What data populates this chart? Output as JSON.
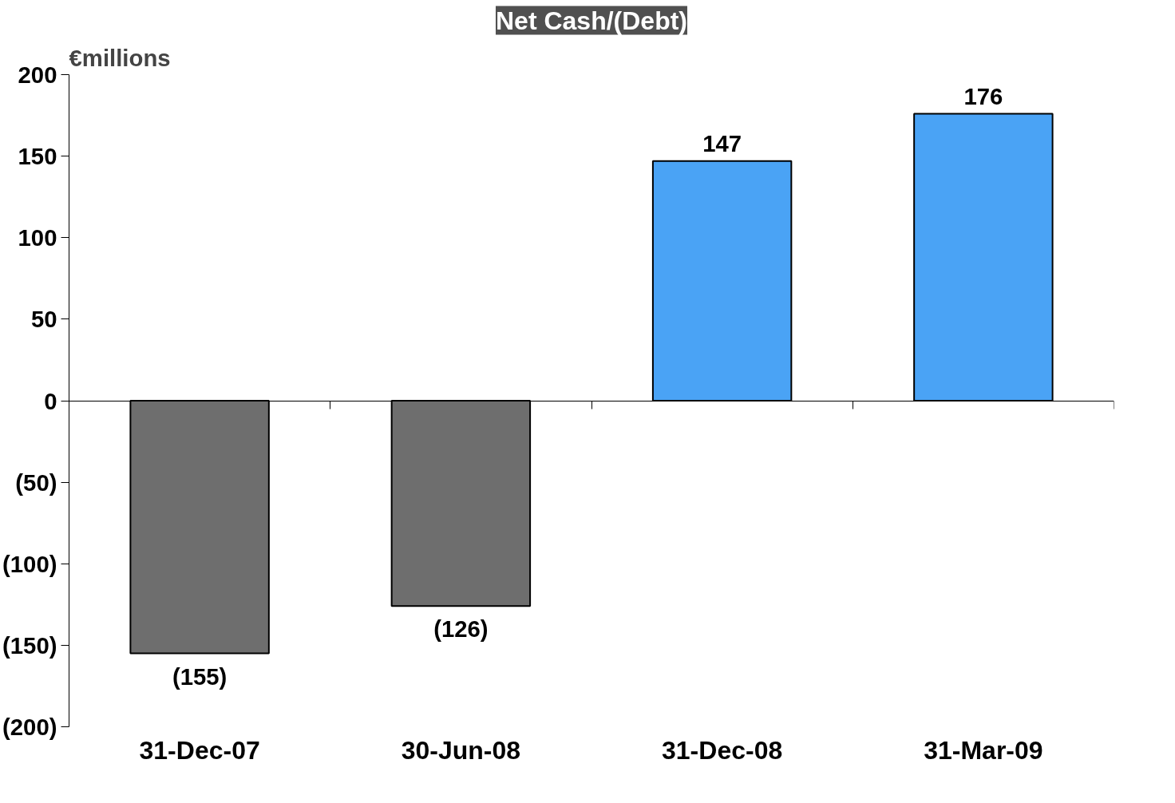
{
  "chart_data": {
    "type": "bar",
    "title": "Net Cash/(Debt)",
    "ylabel": "€millions",
    "categories": [
      "31-Dec-07",
      "30-Jun-08",
      "31-Dec-08",
      "31-Mar-09"
    ],
    "values": [
      -155,
      -126,
      147,
      176
    ],
    "colors": [
      "#6e6e6e",
      "#6e6e6e",
      "#4aa3f5",
      "#4aa3f5"
    ],
    "value_labels": [
      "(155)",
      "(126)",
      "147",
      "176"
    ],
    "ylim": [
      -200,
      200
    ],
    "yticks": [
      {
        "value": -200,
        "label": "(200)"
      },
      {
        "value": -150,
        "label": "(150)"
      },
      {
        "value": -100,
        "label": "(100)"
      },
      {
        "value": -50,
        "label": "(50)"
      },
      0,
      50,
      100,
      150,
      200
    ]
  }
}
